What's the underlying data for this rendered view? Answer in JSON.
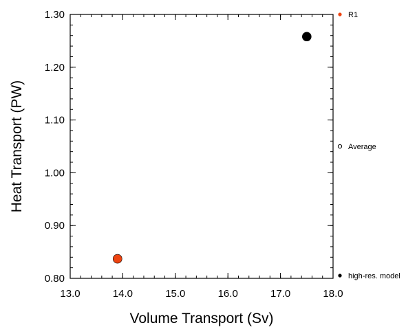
{
  "chart_data": {
    "type": "scatter",
    "title": "",
    "xlabel": "Volume Transport (Sv)",
    "ylabel": "Heat Transport (PW)",
    "xlim": [
      13.0,
      18.0
    ],
    "ylim": [
      0.8,
      1.3
    ],
    "x_ticks": [
      "13.0",
      "14.0",
      "15.0",
      "16.0",
      "17.0",
      "18.0"
    ],
    "y_ticks": [
      "0.80",
      "0.90",
      "1.00",
      "1.10",
      "1.20",
      "1.30"
    ],
    "grid": false,
    "legend_position": "right",
    "points": [
      {
        "x": 13.9,
        "y": 0.837,
        "color": "#ee4411",
        "series": "R1"
      },
      {
        "x": 17.5,
        "y": 1.258,
        "color": "#000000",
        "series": "high-res. model"
      }
    ],
    "legend": [
      {
        "label": "R1",
        "marker": "filled",
        "color": "#ee4411"
      },
      {
        "label": "Average",
        "marker": "open",
        "color": "#000000"
      },
      {
        "label": "high-res. model",
        "marker": "filled",
        "color": "#000000"
      }
    ]
  }
}
